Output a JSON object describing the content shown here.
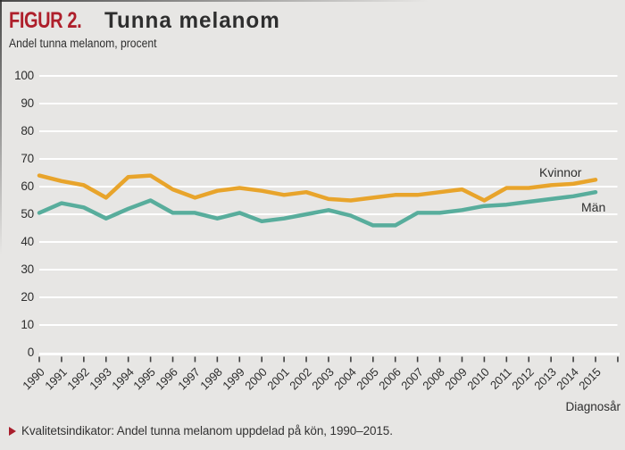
{
  "header": {
    "figure_label": "FIGUR 2.",
    "title": "Tunna melanom",
    "subtitle": "Andel tunna melanom, procent"
  },
  "chart_data": {
    "type": "line",
    "x": [
      1990,
      1991,
      1992,
      1993,
      1994,
      1995,
      1996,
      1997,
      1998,
      1999,
      2000,
      2001,
      2002,
      2003,
      2004,
      2005,
      2006,
      2007,
      2008,
      2009,
      2010,
      2011,
      2012,
      2013,
      2014,
      2015
    ],
    "series": [
      {
        "name": "Kvinnor",
        "color": "#e8a42b",
        "values": [
          64,
          62,
          60.5,
          56,
          63.5,
          64,
          59,
          56,
          58.5,
          59.5,
          58.5,
          57,
          58,
          55.5,
          55,
          56,
          57,
          57,
          58,
          59,
          55,
          59.5,
          59.5,
          60.5,
          61,
          62.5
        ]
      },
      {
        "name": "Män",
        "color": "#58ad9c",
        "values": [
          50.5,
          54,
          52.5,
          48.5,
          52,
          55,
          50.5,
          50.5,
          48.5,
          50.5,
          47.5,
          48.5,
          50,
          51.5,
          49.5,
          46,
          46,
          50.5,
          50.5,
          51.5,
          53,
          53.5,
          54.5,
          55.5,
          56.5,
          58
        ]
      }
    ],
    "title": "FIGUR 2. Tunna melanom",
    "xlabel": "Diagnosår",
    "ylabel": "Andel tunna melanom, procent",
    "ylim": [
      0,
      100
    ],
    "yticks": [
      0,
      10,
      20,
      30,
      40,
      50,
      60,
      70,
      80,
      90,
      100
    ],
    "grid": true,
    "legend_position": "labels at right end of lines"
  },
  "footer": {
    "caption": "Kvalitetsindikator: Andel tunna melanom uppdelad på kön, 1990–2015."
  },
  "colors": {
    "background": "#e7e6e4",
    "gridline": "#ffffff",
    "axis_line": "#ffffff",
    "tick": "#3f3f3f",
    "kvinnor_line": "#e8a42b",
    "man_line": "#58ad9c",
    "figure_label_red": "#ae1f2b",
    "text": "#2e2e2e"
  }
}
